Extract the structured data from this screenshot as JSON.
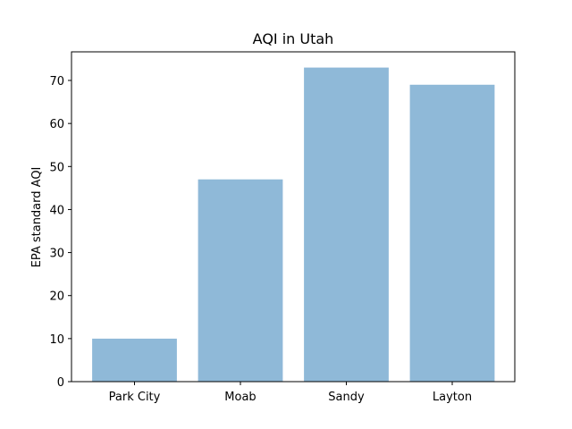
{
  "chart_data": {
    "type": "bar",
    "title": "AQI in Utah",
    "xlabel": "",
    "ylabel": "EPA standard AQI",
    "categories": [
      "Park City",
      "Moab",
      "Sandy",
      "Layton"
    ],
    "values": [
      10,
      47,
      73,
      69
    ],
    "ylim": [
      0,
      76.65
    ],
    "yticks": [
      0,
      10,
      20,
      30,
      40,
      50,
      60,
      70
    ],
    "bar_color": "#8fb9d8",
    "grid": false,
    "legend": "none"
  }
}
